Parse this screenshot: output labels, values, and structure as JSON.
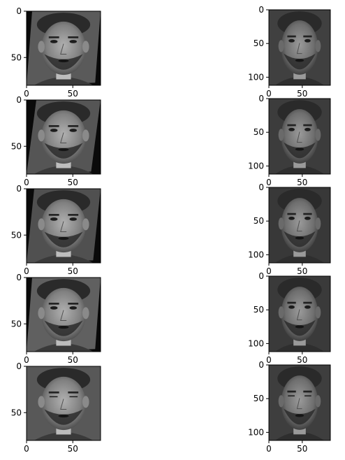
{
  "chart_data": [
    {
      "type": "image",
      "row": 1,
      "col": 1,
      "xlim": [
        0,
        80
      ],
      "ylim": [
        80,
        0
      ],
      "xticks": [
        0,
        50
      ],
      "yticks": [
        0,
        50
      ],
      "xtick_labels": [
        "0",
        "50"
      ],
      "ytick_labels": [
        "0",
        "50"
      ],
      "content": "grayscale face",
      "variant": "slightly rotated, black corner wedges",
      "tint": "#5a5a5a",
      "eyes": "open"
    },
    {
      "type": "image",
      "row": 1,
      "col": 2,
      "xlim": [
        0,
        92
      ],
      "ylim": [
        112,
        0
      ],
      "xticks": [
        0,
        50
      ],
      "yticks": [
        0,
        50,
        100
      ],
      "xtick_labels": [
        "0",
        "50"
      ],
      "ytick_labels": [
        "0",
        "50",
        "100"
      ],
      "content": "grayscale face",
      "variant": "original",
      "tint": "#404040",
      "eyes": "open"
    },
    {
      "type": "image",
      "row": 2,
      "col": 1,
      "xlim": [
        0,
        80
      ],
      "ylim": [
        80,
        0
      ],
      "xticks": [
        0,
        50
      ],
      "yticks": [
        0,
        50
      ],
      "xtick_labels": [
        "0",
        "50"
      ],
      "ytick_labels": [
        "0",
        "50"
      ],
      "content": "grayscale face",
      "variant": "slightly rotated, black corner wedges",
      "tint": "#555555",
      "eyes": "open"
    },
    {
      "type": "image",
      "row": 2,
      "col": 2,
      "xlim": [
        0,
        92
      ],
      "ylim": [
        112,
        0
      ],
      "xticks": [
        0,
        50
      ],
      "yticks": [
        0,
        50,
        100
      ],
      "xtick_labels": [
        "0",
        "50"
      ],
      "ytick_labels": [
        "0",
        "50",
        "100"
      ],
      "content": "grayscale face",
      "variant": "original",
      "tint": "#3c3c3c",
      "eyes": "open"
    },
    {
      "type": "image",
      "row": 3,
      "col": 1,
      "xlim": [
        0,
        80
      ],
      "ylim": [
        80,
        0
      ],
      "xticks": [
        0,
        50
      ],
      "yticks": [
        0,
        50
      ],
      "xtick_labels": [
        "0",
        "50"
      ],
      "ytick_labels": [
        "0",
        "50"
      ],
      "content": "grayscale face",
      "variant": "rotated, black corner wedges",
      "tint": "#505050",
      "eyes": "open"
    },
    {
      "type": "image",
      "row": 3,
      "col": 2,
      "xlim": [
        0,
        92
      ],
      "ylim": [
        112,
        0
      ],
      "xticks": [
        0,
        50
      ],
      "yticks": [
        0,
        50,
        100
      ],
      "xtick_labels": [
        "0",
        "50"
      ],
      "ytick_labels": [
        "0",
        "50",
        "100"
      ],
      "content": "grayscale face",
      "variant": "original",
      "tint": "#383838",
      "eyes": "open"
    },
    {
      "type": "image",
      "row": 4,
      "col": 1,
      "xlim": [
        0,
        80
      ],
      "ylim": [
        80,
        0
      ],
      "xticks": [
        0,
        50
      ],
      "yticks": [
        0,
        50
      ],
      "xtick_labels": [
        "0",
        "50"
      ],
      "ytick_labels": [
        "0",
        "50"
      ],
      "content": "grayscale face",
      "variant": "rotated, black corner wedges, brighter",
      "tint": "#606060",
      "eyes": "open"
    },
    {
      "type": "image",
      "row": 4,
      "col": 2,
      "xlim": [
        0,
        92
      ],
      "ylim": [
        112,
        0
      ],
      "xticks": [
        0,
        50
      ],
      "yticks": [
        0,
        50,
        100
      ],
      "xtick_labels": [
        "0",
        "50"
      ],
      "ytick_labels": [
        "0",
        "50",
        "100"
      ],
      "content": "grayscale face",
      "variant": "original",
      "tint": "#3a3a3a",
      "eyes": "open"
    },
    {
      "type": "image",
      "row": 5,
      "col": 1,
      "xlim": [
        0,
        80
      ],
      "ylim": [
        80,
        0
      ],
      "xticks": [
        0,
        50
      ],
      "yticks": [
        0,
        50
      ],
      "xtick_labels": [
        "0",
        "50"
      ],
      "ytick_labels": [
        "0",
        "50"
      ],
      "content": "grayscale face",
      "variant": "slightly rotated",
      "tint": "#585858",
      "eyes": "closed"
    },
    {
      "type": "image",
      "row": 5,
      "col": 2,
      "xlim": [
        0,
        92
      ],
      "ylim": [
        112,
        0
      ],
      "xticks": [
        0,
        50
      ],
      "yticks": [
        0,
        50,
        100
      ],
      "xtick_labels": [
        "0",
        "50"
      ],
      "ytick_labels": [
        "0",
        "50",
        "100"
      ],
      "content": "grayscale face",
      "variant": "original",
      "tint": "#3e3e3e",
      "eyes": "closed"
    }
  ]
}
